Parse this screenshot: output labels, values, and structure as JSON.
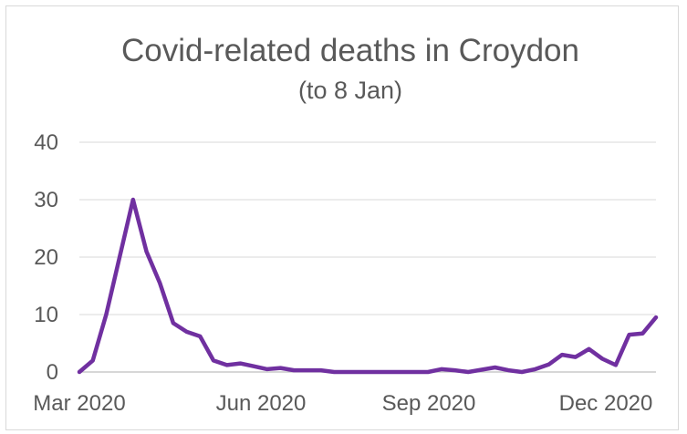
{
  "chart_data": {
    "type": "line",
    "title": "Covid-related deaths in Croydon",
    "subtitle": "(to 8 Jan)",
    "xlabel": "",
    "ylabel": "",
    "ylim": [
      0,
      40
    ],
    "y_ticks": [
      0,
      10,
      20,
      30,
      40
    ],
    "x_tick_labels": [
      "Mar 2020",
      "Jun 2020",
      "Sep 2020",
      "Dec 2020"
    ],
    "grid": true,
    "line_color": "#7030a0",
    "series": [
      {
        "values": [
          0,
          2,
          10,
          20,
          30,
          21,
          15.5,
          8.5,
          7,
          6.2,
          2,
          1.2,
          1.5,
          1,
          0.5,
          0.7,
          0.3,
          0.3,
          0.3,
          0,
          0,
          0,
          0,
          0,
          0,
          0,
          0,
          0.5,
          0.3,
          0,
          0.4,
          0.8,
          0.3,
          0,
          0.5,
          1.3,
          3,
          2.6,
          4,
          2.3,
          1.2,
          6.5,
          6.7,
          9.5
        ]
      }
    ]
  }
}
